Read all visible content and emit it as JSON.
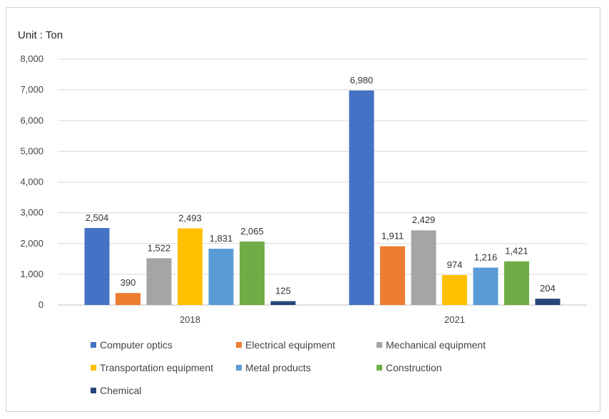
{
  "chart_data": {
    "type": "bar",
    "title": "",
    "unit_label": "Unit : Ton",
    "xlabel": "",
    "ylabel": "",
    "categories": [
      "2018",
      "2021"
    ],
    "ylim": [
      0,
      8000
    ],
    "yticks": [
      0,
      1000,
      2000,
      3000,
      4000,
      5000,
      6000,
      7000,
      8000
    ],
    "ytick_labels": [
      "0",
      "1,000",
      "2,000",
      "3,000",
      "4,000",
      "5,000",
      "6,000",
      "7,000",
      "8,000"
    ],
    "grid": true,
    "legend_position": "bottom",
    "series": [
      {
        "name": "Computer optics",
        "color": "#4472C4",
        "values": [
          2504,
          6980
        ],
        "labels": [
          "2,504",
          "6,980"
        ]
      },
      {
        "name": "Electrical equipment",
        "color": "#ED7D31",
        "values": [
          390,
          1911
        ],
        "labels": [
          "390",
          "1,911"
        ]
      },
      {
        "name": "Mechanical equipment",
        "color": "#A5A5A5",
        "values": [
          1522,
          2429
        ],
        "labels": [
          "1,522",
          "2,429"
        ]
      },
      {
        "name": "Transportation equipment",
        "color": "#FFC000",
        "values": [
          2493,
          974
        ],
        "labels": [
          "2,493",
          "974"
        ]
      },
      {
        "name": "Metal products",
        "color": "#5B9BD5",
        "values": [
          1831,
          1216
        ],
        "labels": [
          "1,831",
          "1,216"
        ]
      },
      {
        "name": "Construction",
        "color": "#70AD47",
        "values": [
          2065,
          1421
        ],
        "labels": [
          "2,065",
          "1,421"
        ]
      },
      {
        "name": "Chemical",
        "color": "#264478",
        "values": [
          125,
          204
        ],
        "labels": [
          "125",
          "204"
        ]
      }
    ]
  }
}
